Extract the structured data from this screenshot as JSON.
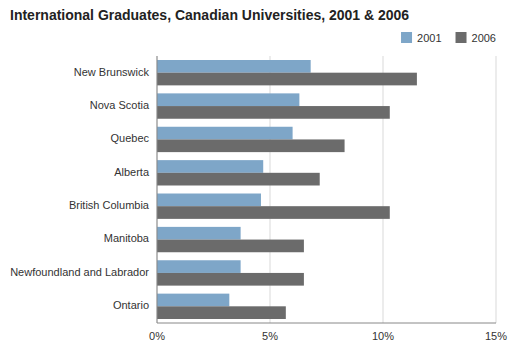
{
  "chart_data": {
    "type": "bar",
    "orientation": "horizontal",
    "title": "International Graduates, Canadian Universities, 2001 & 2006",
    "categories": [
      "New Brunswick",
      "Nova Scotia",
      "Quebec",
      "Alberta",
      "British Columbia",
      "Manitoba",
      "Newfoundland and Labrador",
      "Ontario"
    ],
    "series": [
      {
        "name": "2001",
        "color": "#7EA6C8",
        "values": [
          6.8,
          6.3,
          6.0,
          4.7,
          4.6,
          3.7,
          3.7,
          3.2
        ]
      },
      {
        "name": "2006",
        "color": "#6B6B6B",
        "values": [
          11.5,
          10.3,
          8.3,
          7.2,
          10.3,
          6.5,
          6.5,
          5.7
        ]
      }
    ],
    "xlim": [
      0,
      15
    ],
    "xticks": [
      {
        "value": 0,
        "label": "0%"
      },
      {
        "value": 5,
        "label": "5%"
      },
      {
        "value": 10,
        "label": "10%"
      },
      {
        "value": 15,
        "label": "15%"
      }
    ],
    "grid": true,
    "legend": "upper right"
  }
}
